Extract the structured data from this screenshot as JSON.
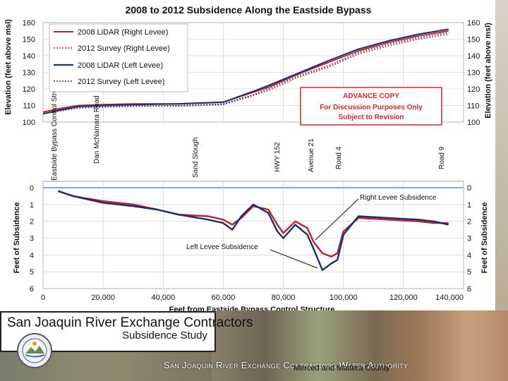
{
  "chart_data": {
    "title": "2008 to 2012 Subsidence Along the Eastside Bypass",
    "xlabel": "Feet from Eastside Bypass Control Structure",
    "xlim": [
      0,
      140000
    ],
    "x_ticks": [
      "0",
      "20,000",
      "40,000",
      "60,000",
      "80,000",
      "100,000",
      "120,000",
      "140,000"
    ],
    "top_panel": {
      "type": "line",
      "ylabel_left": "Elevation (feet above msl)",
      "ylabel_right": "Elevation (feet above msl)",
      "ylim": [
        100,
        160
      ],
      "y_ticks": [
        "100",
        "110",
        "120",
        "130",
        "140",
        "150",
        "160"
      ],
      "legend": [
        "2008 LiDAR (Right Levee)",
        "2012 Survey (Right Levee)",
        "2008 LiDAR (Left Levee)",
        "2012 Survey (Left Levee)"
      ],
      "series": [
        {
          "name": "2008 LiDAR (Right Levee)",
          "color": "#c0202a",
          "style": "solid",
          "x": [
            0,
            5000,
            12000,
            20000,
            30000,
            45000,
            60000,
            70000,
            75000,
            85000,
            95000,
            105000,
            115000,
            125000,
            135000
          ],
          "y": [
            106,
            108,
            110,
            110.5,
            111,
            111,
            112,
            118,
            121,
            129,
            136,
            143,
            148,
            152,
            155
          ]
        },
        {
          "name": "2012 Survey (Right Levee)",
          "color": "#c0202a",
          "style": "dotted",
          "x": [
            0,
            5000,
            12000,
            20000,
            30000,
            45000,
            60000,
            70000,
            75000,
            85000,
            95000,
            105000,
            115000,
            125000,
            135000
          ],
          "y": [
            106,
            107.5,
            109,
            109.5,
            110,
            109.5,
            110.5,
            116,
            119,
            127,
            133,
            141,
            146,
            150,
            153
          ]
        },
        {
          "name": "2008 LiDAR (Left Levee)",
          "color": "#1a2f6e",
          "style": "solid",
          "x": [
            0,
            5000,
            12000,
            20000,
            30000,
            45000,
            60000,
            70000,
            75000,
            85000,
            95000,
            105000,
            115000,
            125000,
            135000
          ],
          "y": [
            105,
            107,
            109.5,
            110,
            110.5,
            111,
            112,
            118.5,
            122,
            129.5,
            137,
            144,
            149,
            153,
            156
          ]
        },
        {
          "name": "2012 Survey (Left Levee)",
          "color": "#1a2f6e",
          "style": "dotted",
          "x": [
            0,
            5000,
            12000,
            20000,
            30000,
            45000,
            60000,
            70000,
            75000,
            85000,
            95000,
            105000,
            115000,
            125000,
            135000
          ],
          "y": [
            105,
            106.5,
            108.5,
            109,
            109.5,
            110,
            111,
            116.5,
            120,
            128,
            134,
            142,
            147,
            151,
            154
          ]
        }
      ]
    },
    "bottom_panel": {
      "type": "line",
      "ylabel_left": "Feet of Subsidence",
      "ylabel_right": "Feet of Subsidence",
      "ylim": [
        0,
        6
      ],
      "inverted": true,
      "y_ticks": [
        "0",
        "1",
        "2",
        "3",
        "4",
        "5",
        "6"
      ],
      "series": [
        {
          "name": "Right Levee Subsidence",
          "color": "#c0202a",
          "x": [
            5000,
            10000,
            20000,
            30000,
            38000,
            45000,
            55000,
            60000,
            63000,
            66000,
            70000,
            75000,
            78000,
            80000,
            84000,
            88000,
            90000,
            93000,
            96000,
            98000,
            100000,
            105000,
            115000,
            125000,
            130000,
            135000
          ],
          "y": [
            0.2,
            0.5,
            0.8,
            1.0,
            1.3,
            1.6,
            1.7,
            1.9,
            2.2,
            1.8,
            1.1,
            1.3,
            2.2,
            2.7,
            2.0,
            2.4,
            3.2,
            3.9,
            4.1,
            3.9,
            2.6,
            1.8,
            1.9,
            2.0,
            2.1,
            2.1
          ]
        },
        {
          "name": "Left Levee Subsidence",
          "color": "#1a2f6e",
          "x": [
            5000,
            10000,
            20000,
            30000,
            38000,
            45000,
            55000,
            60000,
            63000,
            66000,
            70000,
            75000,
            78000,
            80000,
            84000,
            88000,
            90000,
            93000,
            96000,
            98000,
            100000,
            105000,
            115000,
            125000,
            130000,
            135000
          ],
          "y": [
            0.2,
            0.5,
            0.9,
            1.1,
            1.3,
            1.6,
            1.9,
            2.1,
            2.5,
            1.7,
            1.0,
            1.5,
            2.6,
            3.0,
            2.2,
            2.8,
            3.6,
            4.9,
            4.5,
            4.3,
            2.8,
            1.7,
            1.8,
            1.9,
            2.0,
            2.2
          ]
        }
      ],
      "annotations": [
        "Right Levee Subsidence",
        "Left Levee Subsidence"
      ]
    },
    "road_labels": [
      {
        "label": "Eastside Bypass Control Structure",
        "x": 5000
      },
      {
        "label": "Dan McNamara Road",
        "x": 24000
      },
      {
        "label": "Sand Slough",
        "x": 72000
      },
      {
        "label": "HWY 152",
        "x": 113500
      },
      {
        "label": "Avenue 21",
        "x": 125500
      },
      {
        "label": "Road 4",
        "x": 137000
      },
      {
        "label": "Road 9",
        "x": 177500
      }
    ],
    "advance_copy": [
      "ADVANCE COPY",
      "For Discussion Purposes Only",
      "Subject to Revision"
    ]
  },
  "logo": {
    "line1": "San Joaquin River Exchange Contractors",
    "line2": "Subsidence Study"
  },
  "footer": {
    "title": "San Joaquin River Exchange Contractors Water Authority",
    "subtitle": "Merced and Madera County"
  },
  "colors": {
    "right_levee": "#c0202a",
    "left_levee": "#1a2f6e",
    "advance_copy_border": "#d9262e",
    "advance_copy_text": "#d9262e",
    "zero_line": "#3a6fd0"
  }
}
